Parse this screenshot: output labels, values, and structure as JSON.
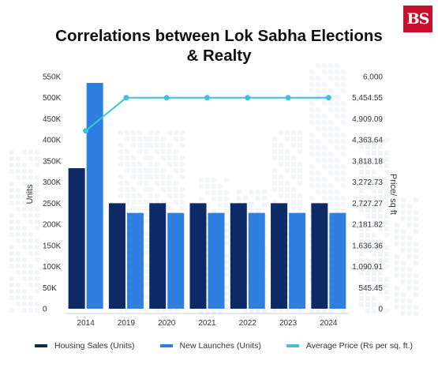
{
  "brand": {
    "logo_text": "BS"
  },
  "chart_data": {
    "type": "bar",
    "title": "Correlations between Lok Sabha Elections & Realty",
    "categories": [
      "2014",
      "2019",
      "2020",
      "2021",
      "2022",
      "2023",
      "2024"
    ],
    "series": [
      {
        "name": "Housing Sales (Units)",
        "kind": "bar",
        "axis": "left",
        "color": "#0d2a66",
        "values": [
          333000,
          250000,
          250000,
          250000,
          250000,
          250000,
          250000
        ]
      },
      {
        "name": "New Launches (Units)",
        "kind": "bar",
        "axis": "left",
        "color": "#2f7fe0",
        "values": [
          535000,
          227000,
          227000,
          227000,
          227000,
          227000,
          227000
        ]
      },
      {
        "name": "Average Price (Rs per sq. ft.)",
        "kind": "line",
        "axis": "right",
        "color": "#3ec3d6",
        "values": [
          4600,
          5454.55,
          5454.55,
          5454.55,
          5454.55,
          5454.55,
          5454.55
        ]
      }
    ],
    "ylabel": "Units",
    "y2label": "Price/ sq ft",
    "ylim": [
      0,
      550000
    ],
    "y2lim": [
      0,
      6000
    ],
    "yticks": [
      "0",
      "50K",
      "100K",
      "150K",
      "200K",
      "250K",
      "300K",
      "350K",
      "400K",
      "450K",
      "500K",
      "550K"
    ],
    "y2ticks": [
      "0",
      "545.45",
      "1,090.91",
      "1,636.36",
      "2,181.82",
      "2,727.27",
      "3,272.73",
      "3,818.18",
      "4,363.64",
      "4,909.09",
      "5,454.55",
      "6,000"
    ],
    "grid": false,
    "legend_position": "bottom"
  }
}
